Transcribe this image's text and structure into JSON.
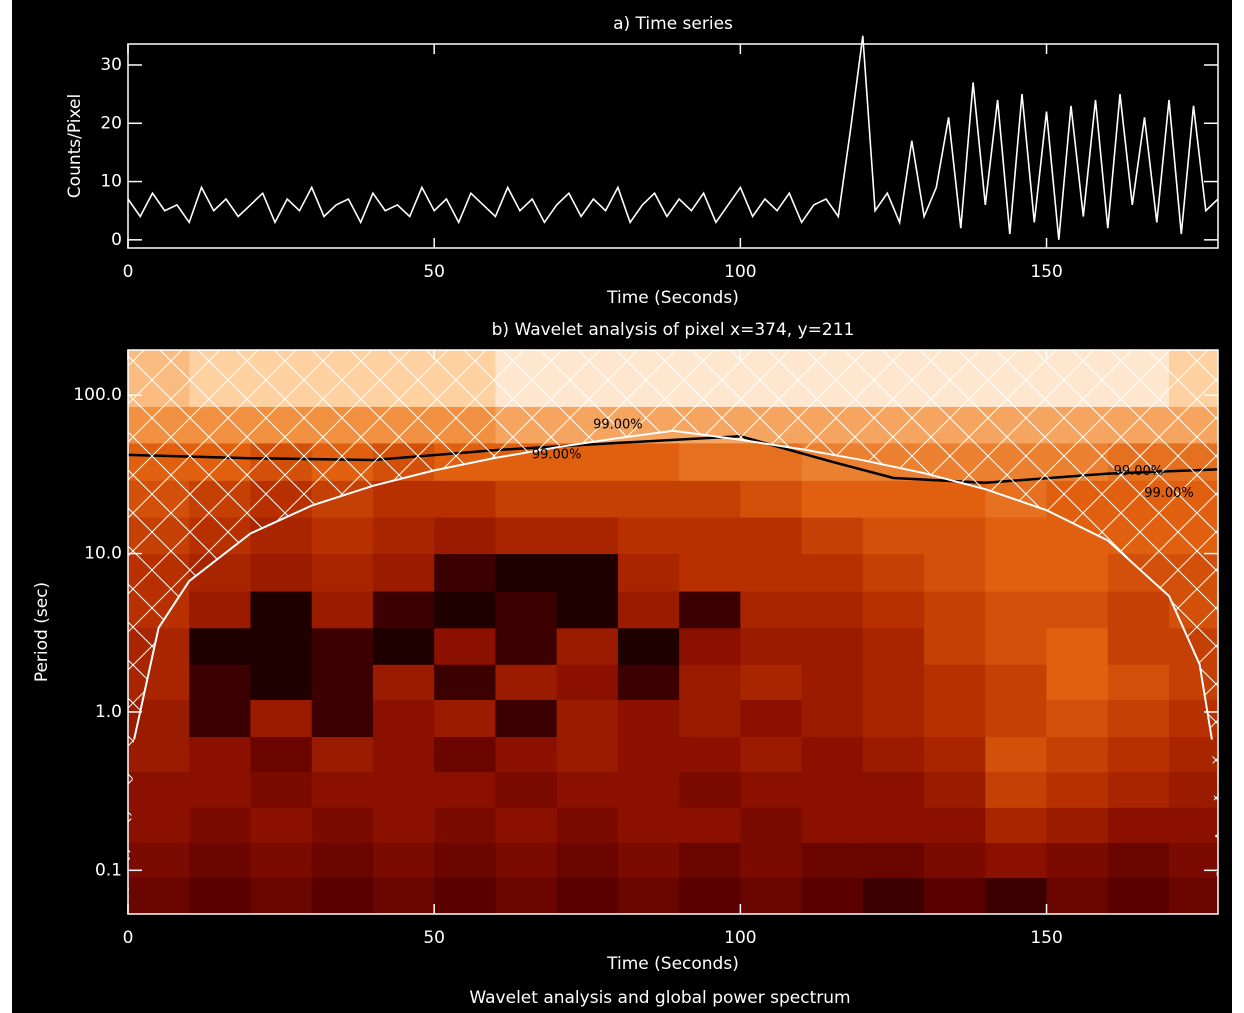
{
  "chart_data": [
    {
      "type": "line",
      "title": "a) Time series",
      "xlabel": "Time (Seconds)",
      "ylabel": "Counts/Pixel",
      "color": "#ffffff",
      "xlim": [
        0,
        178
      ],
      "ylim": [
        -1.4,
        33.6
      ],
      "xticks": [
        0,
        50,
        100,
        150
      ],
      "yticks": [
        0,
        10,
        20,
        30
      ],
      "x": [
        0,
        2,
        4,
        6,
        8,
        10,
        12,
        14,
        16,
        18,
        20,
        22,
        24,
        26,
        28,
        30,
        32,
        34,
        36,
        38,
        40,
        42,
        44,
        46,
        48,
        50,
        52,
        54,
        56,
        58,
        60,
        62,
        64,
        66,
        68,
        70,
        72,
        74,
        76,
        78,
        80,
        82,
        84,
        86,
        88,
        90,
        92,
        94,
        96,
        98,
        100,
        102,
        104,
        106,
        108,
        110,
        112,
        114,
        116,
        118,
        120,
        122,
        124,
        126,
        128,
        130,
        132,
        134,
        136,
        138,
        140,
        142,
        144,
        146,
        148,
        150,
        152,
        154,
        156,
        158,
        160,
        162,
        164,
        166,
        168,
        170,
        172,
        174,
        176,
        178
      ],
      "values": [
        7,
        4,
        8,
        5,
        6,
        3,
        9,
        5,
        7,
        4,
        6,
        8,
        3,
        7,
        5,
        9,
        4,
        6,
        7,
        3,
        8,
        5,
        6,
        4,
        9,
        5,
        7,
        3,
        8,
        6,
        4,
        9,
        5,
        7,
        3,
        6,
        8,
        4,
        7,
        5,
        9,
        3,
        6,
        8,
        4,
        7,
        5,
        8,
        3,
        6,
        9,
        4,
        7,
        5,
        8,
        3,
        6,
        7,
        4,
        19,
        35,
        5,
        8,
        3,
        17,
        4,
        9,
        21,
        2,
        27,
        6,
        24,
        1,
        25,
        3,
        22,
        0,
        23,
        4,
        24,
        2,
        25,
        6,
        21,
        3,
        24,
        1,
        23,
        5,
        7
      ]
    },
    {
      "type": "heatmap",
      "title": "b) Wavelet analysis of pixel x=374, y=211",
      "xlabel": "Time (Seconds)",
      "ylabel": "Period (sec)",
      "log_y": true,
      "xlim": [
        0,
        178
      ],
      "ylim": [
        0.053,
        193
      ],
      "xticks": [
        0,
        50,
        100,
        150
      ],
      "yticks": [
        0.1,
        {
          "value": 1,
          "label": "1.0"
        },
        {
          "value": 10,
          "label": "10.0"
        },
        {
          "value": 100,
          "label": "100.0"
        }
      ],
      "colorscale": [
        [
          0,
          "#000000"
        ],
        [
          0.15,
          "#5a0000"
        ],
        [
          0.3,
          "#8b1000"
        ],
        [
          0.45,
          "#b83000"
        ],
        [
          0.6,
          "#e06010"
        ],
        [
          0.75,
          "#f09040"
        ],
        [
          0.9,
          "#ffd0a0"
        ],
        [
          1,
          "#ffffff"
        ]
      ],
      "xbins": [
        0,
        10,
        20,
        30,
        40,
        50,
        60,
        70,
        80,
        90,
        100,
        110,
        120,
        130,
        140,
        150,
        160,
        170,
        178
      ],
      "ybins": [
        0.053,
        0.09,
        0.15,
        0.25,
        0.42,
        0.7,
        1.2,
        2,
        3.4,
        5.8,
        10,
        17,
        29,
        50,
        85,
        193
      ],
      "z": [
        [
          0.2,
          0.15,
          0.2,
          0.15,
          0.2,
          0.15,
          0.2,
          0.15,
          0.2,
          0.15,
          0.2,
          0.15,
          0.1,
          0.15,
          0.1,
          0.2,
          0.15,
          0.2
        ],
        [
          0.25,
          0.2,
          0.25,
          0.2,
          0.25,
          0.2,
          0.25,
          0.2,
          0.25,
          0.2,
          0.25,
          0.2,
          0.2,
          0.25,
          0.3,
          0.25,
          0.2,
          0.25
        ],
        [
          0.3,
          0.25,
          0.3,
          0.25,
          0.3,
          0.25,
          0.3,
          0.25,
          0.3,
          0.3,
          0.25,
          0.3,
          0.3,
          0.3,
          0.4,
          0.35,
          0.3,
          0.3
        ],
        [
          0.3,
          0.3,
          0.25,
          0.3,
          0.3,
          0.3,
          0.25,
          0.3,
          0.3,
          0.25,
          0.3,
          0.3,
          0.3,
          0.35,
          0.5,
          0.45,
          0.4,
          0.35
        ],
        [
          0.35,
          0.3,
          0.2,
          0.35,
          0.3,
          0.2,
          0.3,
          0.35,
          0.3,
          0.3,
          0.35,
          0.3,
          0.35,
          0.4,
          0.55,
          0.5,
          0.45,
          0.4
        ],
        [
          0.35,
          0.1,
          0.35,
          0.1,
          0.3,
          0.35,
          0.1,
          0.35,
          0.3,
          0.35,
          0.3,
          0.35,
          0.4,
          0.45,
          0.5,
          0.55,
          0.5,
          0.45
        ],
        [
          0.4,
          0.1,
          0.05,
          0.1,
          0.35,
          0.1,
          0.35,
          0.3,
          0.1,
          0.35,
          0.4,
          0.35,
          0.4,
          0.45,
          0.5,
          0.6,
          0.55,
          0.5
        ],
        [
          0.4,
          0.05,
          0.05,
          0.1,
          0.05,
          0.3,
          0.1,
          0.35,
          0.05,
          0.3,
          0.35,
          0.35,
          0.4,
          0.5,
          0.55,
          0.6,
          0.5,
          0.5
        ],
        [
          0.45,
          0.35,
          0.05,
          0.35,
          0.1,
          0.05,
          0.1,
          0.05,
          0.35,
          0.1,
          0.4,
          0.4,
          0.45,
          0.5,
          0.55,
          0.55,
          0.5,
          0.55
        ],
        [
          0.45,
          0.4,
          0.35,
          0.4,
          0.35,
          0.1,
          0.05,
          0.05,
          0.4,
          0.45,
          0.45,
          0.45,
          0.5,
          0.55,
          0.6,
          0.6,
          0.55,
          0.55
        ],
        [
          0.5,
          0.45,
          0.4,
          0.45,
          0.4,
          0.35,
          0.4,
          0.4,
          0.45,
          0.45,
          0.45,
          0.5,
          0.55,
          0.55,
          0.6,
          0.6,
          0.6,
          0.6
        ],
        [
          0.55,
          0.5,
          0.45,
          0.5,
          0.45,
          0.45,
          0.5,
          0.5,
          0.5,
          0.5,
          0.55,
          0.6,
          0.6,
          0.6,
          0.65,
          0.6,
          0.6,
          0.6
        ],
        [
          0.6,
          0.6,
          0.55,
          0.6,
          0.55,
          0.6,
          0.6,
          0.6,
          0.6,
          0.65,
          0.65,
          0.7,
          0.7,
          0.7,
          0.7,
          0.7,
          0.65,
          0.65
        ],
        [
          0.75,
          0.75,
          0.75,
          0.75,
          0.75,
          0.75,
          0.8,
          0.8,
          0.8,
          0.8,
          0.8,
          0.8,
          0.8,
          0.8,
          0.8,
          0.8,
          0.8,
          0.8
        ],
        [
          0.85,
          0.9,
          0.9,
          0.9,
          0.9,
          0.9,
          0.95,
          0.95,
          0.95,
          0.95,
          0.95,
          0.95,
          0.95,
          0.95,
          0.95,
          0.95,
          0.95,
          0.9
        ]
      ],
      "coi": {
        "x": [
          1,
          5,
          10,
          20,
          30,
          40,
          50,
          60,
          70,
          80,
          89,
          100,
          110,
          120,
          130,
          140,
          150,
          160,
          170,
          175,
          177
        ],
        "y": [
          0.67,
          3.4,
          6.7,
          13.4,
          20.1,
          26.8,
          33.5,
          40.2,
          46.9,
          53.6,
          59.6,
          52.3,
          45.6,
          38.9,
          32.2,
          25.5,
          18.8,
          12.1,
          5.4,
          2.0,
          0.67
        ]
      },
      "contour": {
        "x": [
          0,
          20,
          40,
          60,
          80,
          100,
          115,
          125,
          140,
          160,
          178
        ],
        "y": [
          42,
          40,
          39,
          45,
          50,
          55,
          38,
          30,
          28,
          32,
          34
        ]
      },
      "annotations": [
        {
          "text": "99.00%",
          "x": 70,
          "y": 42
        },
        {
          "text": "99.00%",
          "x": 80,
          "y": 65
        },
        {
          "text": "99.00%",
          "x": 165,
          "y": 33
        },
        {
          "text": "99.00%",
          "x": 170,
          "y": 24
        }
      ]
    }
  ],
  "footer": "Wavelet analysis and global power spectrum"
}
